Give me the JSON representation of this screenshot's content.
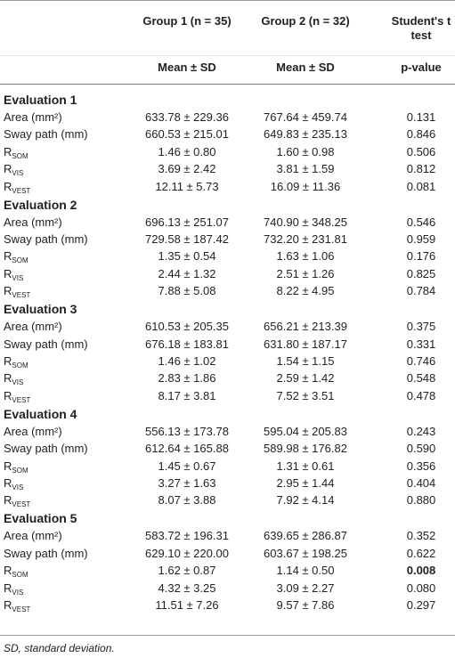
{
  "header": {
    "col1": "Group 1 (n = 35)",
    "col2": "Group 2 (n = 32)",
    "col3": "Student's t test",
    "sub1": "Mean ± SD",
    "sub2": "Mean ± SD",
    "sub3": "p-value"
  },
  "sections": [
    {
      "title": "Evaluation 1",
      "rows": [
        {
          "label": "Area (mm²)",
          "cells": [
            "633.78 ± 229.36",
            "767.64 ± 459.74",
            "0.131"
          ]
        },
        {
          "label": "Sway path (mm)",
          "cells": [
            "660.53 ± 215.01",
            "649.83 ± 235.13",
            "0.846"
          ]
        },
        {
          "label": {
            "text": "R",
            "sub": "SOM"
          },
          "cells": [
            "1.46 ± 0.80",
            "1.60 ± 0.98",
            "0.506"
          ]
        },
        {
          "label": {
            "text": "R",
            "sub": "VIS"
          },
          "cells": [
            "3.69 ± 2.42",
            "3.81 ± 1.59",
            "0.812"
          ]
        },
        {
          "label": {
            "text": "R",
            "sub": "VEST"
          },
          "cells": [
            "12.11 ± 5.73",
            "16.09 ± 11.36",
            "0.081"
          ]
        }
      ]
    },
    {
      "title": "Evaluation 2",
      "rows": [
        {
          "label": "Area (mm²)",
          "cells": [
            "696.13 ± 251.07",
            "740.90 ± 348.25",
            "0.546"
          ]
        },
        {
          "label": "Sway path (mm)",
          "cells": [
            "729.58 ± 187.42",
            "732.20 ± 231.81",
            "0.959"
          ]
        },
        {
          "label": {
            "text": "R",
            "sub": "SOM"
          },
          "cells": [
            "1.35 ± 0.54",
            "1.63 ± 1.06",
            "0.176"
          ]
        },
        {
          "label": {
            "text": "R",
            "sub": "VIS"
          },
          "cells": [
            "2.44 ± 1.32",
            "2.51 ± 1.26",
            "0.825"
          ]
        },
        {
          "label": {
            "text": "R",
            "sub": "VEST"
          },
          "cells": [
            "7.88 ± 5.08",
            "8.22 ± 4.95",
            "0.784"
          ]
        }
      ]
    },
    {
      "title": "Evaluation 3",
      "rows": [
        {
          "label": "Area (mm²)",
          "cells": [
            "610.53 ± 205.35",
            "656.21 ± 213.39",
            "0.375"
          ]
        },
        {
          "label": "Sway path (mm)",
          "cells": [
            "676.18 ± 183.81",
            "631.80 ± 187.17",
            "0.331"
          ]
        },
        {
          "label": {
            "text": "R",
            "sub": "SOM"
          },
          "cells": [
            "1.46 ± 1.02",
            "1.54 ± 1.15",
            "0.746"
          ]
        },
        {
          "label": {
            "text": "R",
            "sub": "VIS"
          },
          "cells": [
            "2.83 ± 1.86",
            "2.59 ± 1.42",
            "0.548"
          ]
        },
        {
          "label": {
            "text": "R",
            "sub": "VEST"
          },
          "cells": [
            "8.17 ± 3.81",
            "7.52 ± 3.51",
            "0.478"
          ]
        }
      ]
    },
    {
      "title": "Evaluation 4",
      "rows": [
        {
          "label": "Area (mm²)",
          "cells": [
            "556.13 ± 173.78",
            "595.04 ± 205.83",
            "0.243"
          ]
        },
        {
          "label": "Sway path (mm)",
          "cells": [
            "612.64 ± 165.88",
            "589.98 ± 176.82",
            "0.590"
          ]
        },
        {
          "label": {
            "text": "R",
            "sub": "SOM"
          },
          "cells": [
            "1.45 ± 0.67",
            "1.31 ± 0.61",
            "0.356"
          ]
        },
        {
          "label": {
            "text": "R",
            "sub": "VIS"
          },
          "cells": [
            "3.27 ± 1.63",
            "2.95 ± 1.44",
            "0.404"
          ]
        },
        {
          "label": {
            "text": "R",
            "sub": "VEST"
          },
          "cells": [
            "8.07 ± 3.88",
            "7.92 ± 4.14",
            "0.880"
          ]
        }
      ]
    },
    {
      "title": "Evaluation 5",
      "rows": [
        {
          "label": "Area (mm²)",
          "cells": [
            "583.72 ± 196.31",
            "639.65 ± 286.87",
            "0.352"
          ]
        },
        {
          "label": "Sway path (mm)",
          "cells": [
            "629.10 ± 220.00",
            "603.67 ± 198.25",
            "0.622"
          ]
        },
        {
          "label": {
            "text": "R",
            "sub": "SOM"
          },
          "cells": [
            "1.62 ± 0.87",
            "1.14 ± 0.50",
            "0.008"
          ],
          "p_bold": true
        },
        {
          "label": {
            "text": "R",
            "sub": "VIS"
          },
          "cells": [
            "4.32 ± 3.25",
            "3.09 ± 2.27",
            "0.080"
          ]
        },
        {
          "label": {
            "text": "R",
            "sub": "VEST"
          },
          "cells": [
            "11.51 ± 7.26",
            "9.57 ± 7.86",
            "0.297"
          ]
        }
      ]
    }
  ],
  "footnote": "SD, standard deviation."
}
